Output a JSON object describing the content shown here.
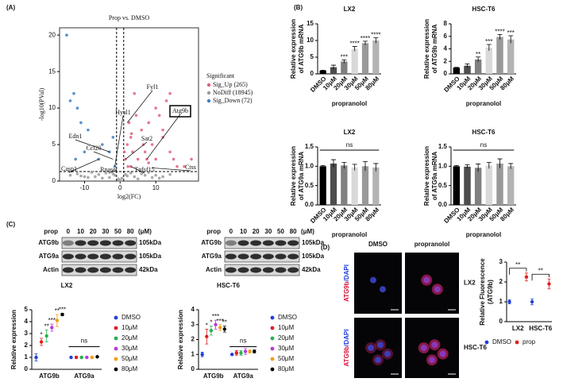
{
  "panel_labels": [
    "(A)",
    "(B)",
    "(C)",
    "(D)"
  ],
  "chart_data": [
    {
      "type": "scatter",
      "title": "Prop vs. DMSO",
      "xlabel": "log2(FC)",
      "ylabel": "-log10(PVal)",
      "xlim": [
        -17,
        22
      ],
      "ylim": [
        0,
        21
      ],
      "xticks": [
        -10,
        0,
        10
      ],
      "yticks": [
        0,
        5,
        10,
        15,
        20
      ],
      "thresholds": {
        "x": [
          -1,
          1
        ],
        "y": 1.3
      },
      "legend_title": "Significant",
      "series": [
        {
          "name": "Sig_Up (265)",
          "color": "#e0607e",
          "x": [
            1.5,
            2,
            2.5,
            3,
            3.5,
            4,
            5,
            6,
            7,
            8,
            9,
            10,
            11,
            12,
            13,
            14,
            15,
            16,
            3,
            4.5,
            6.5,
            8,
            10,
            12,
            14,
            2.2,
            3.2,
            18,
            20,
            1.2,
            7.5
          ],
          "values": [
            3,
            5,
            8,
            6,
            4,
            12,
            3,
            7,
            4,
            2.5,
            5,
            3,
            9,
            6,
            11,
            4,
            3,
            2,
            2,
            9,
            5,
            8,
            10,
            7,
            12,
            2,
            6.5,
            2,
            3,
            4,
            3
          ]
        },
        {
          "name": "NoDiff (18945)",
          "color": "#9a9a9a",
          "x": [
            -14,
            -12,
            -10,
            -8,
            -6,
            -4,
            -3,
            -2,
            -1.5,
            -0.5,
            0.5,
            1.5,
            2,
            3,
            4,
            6,
            8,
            10,
            12,
            14,
            -5,
            5,
            -9,
            9,
            0,
            -11,
            11,
            -7,
            7
          ],
          "values": [
            0.8,
            1,
            0.6,
            1.2,
            0.9,
            1.1,
            0.5,
            1,
            0.8,
            0.3,
            0.4,
            0.9,
            0.7,
            1.1,
            0.6,
            1,
            1.2,
            0.8,
            0.6,
            0.9,
            0.4,
            0.3,
            0.5,
            0.5,
            0.1,
            0.7,
            0.4,
            0.6,
            0.8
          ]
        },
        {
          "name": "Sig_Down (72)",
          "color": "#3d7fc1",
          "x": [
            -15,
            -14,
            -13,
            -12,
            -11,
            -10,
            -9,
            -6,
            -5,
            -3,
            -2,
            -1.5,
            -12.5
          ],
          "values": [
            20,
            11,
            12,
            10,
            8,
            4,
            7,
            3,
            5,
            4,
            6,
            2,
            3
          ]
        }
      ],
      "annotations": [
        {
          "text": "Fyl1",
          "x": 2,
          "y": 8
        },
        {
          "text": "Atg9b",
          "x": 7.5,
          "y": 3,
          "boxed": true
        },
        {
          "text": "Hyal1",
          "x": -1.5,
          "y": 2
        },
        {
          "text": "Sat2",
          "x": 1.5,
          "y": 3
        },
        {
          "text": "Edn1",
          "x": -3,
          "y": 4
        },
        {
          "text": "Ccl20",
          "x": -2,
          "y": 3
        },
        {
          "text": "Casp1",
          "x": -6,
          "y": 3
        },
        {
          "text": "Rnasel",
          "x": -1,
          "y": 1.5
        },
        {
          "text": "Tnfsf15",
          "x": 3,
          "y": 2
        },
        {
          "text": "Ctss",
          "x": 9,
          "y": 1.8
        }
      ]
    },
    {
      "type": "bar",
      "title": "LX2",
      "ylabel": [
        "Relative expression",
        "of ATG9b mRNA"
      ],
      "xlabel": "propranolol",
      "categories": [
        "DMSO",
        "10μM",
        "20μM",
        "30μM",
        "50μM",
        "80μM"
      ],
      "values": [
        1,
        2,
        3.7,
        7.5,
        9.2,
        10
      ],
      "errors": [
        0.1,
        0.6,
        0.5,
        0.7,
        0.6,
        0.8
      ],
      "significance": [
        null,
        null,
        "***",
        "****",
        "****",
        "****"
      ],
      "colors": [
        "#000000",
        "#4d4d4d",
        "#808080",
        "#d9d9d9",
        "#999999",
        "#b3b3b3"
      ],
      "ylim": [
        0,
        15
      ],
      "yticks": [
        0,
        5,
        10,
        15
      ]
    },
    {
      "type": "bar",
      "title": "HSC-T6",
      "ylabel": [
        "Relative expression",
        "of ATG9b mRNA"
      ],
      "xlabel": "propranolol",
      "categories": [
        "DMSO",
        "10μM",
        "20μM",
        "30μM",
        "50μM",
        "80μM"
      ],
      "values": [
        1,
        1.3,
        2.3,
        4.2,
        5.9,
        5.5
      ],
      "errors": [
        0.05,
        0.3,
        0.4,
        0.5,
        0.4,
        0.6
      ],
      "significance": [
        null,
        null,
        "**",
        "***",
        "****",
        "***"
      ],
      "colors": [
        "#000000",
        "#4d4d4d",
        "#808080",
        "#d9d9d9",
        "#999999",
        "#b3b3b3"
      ],
      "ylim": [
        0,
        8
      ],
      "yticks": [
        0,
        2,
        4,
        6,
        8
      ]
    },
    {
      "type": "bar",
      "title": "LX2",
      "ylabel": [
        "Relative expression",
        "of ATG9a mRNA"
      ],
      "xlabel": "propranolol",
      "categories": [
        "DMSO",
        "10μM",
        "20μM",
        "30μM",
        "50μM",
        "80μM"
      ],
      "values": [
        1,
        1.07,
        1.02,
        0.97,
        1,
        0.97
      ],
      "errors": [
        0.02,
        0.1,
        0.08,
        0.08,
        0.12,
        0.1
      ],
      "colors": [
        "#000000",
        "#4d4d4d",
        "#808080",
        "#d9d9d9",
        "#999999",
        "#b3b3b3"
      ],
      "annotation": "ns",
      "ylim": [
        0,
        1.5
      ],
      "yticks": [
        {
          "value": 0,
          "label": "0.0"
        },
        {
          "value": 0.5,
          "label": "0.5"
        },
        {
          "value": 1,
          "label": "1.0"
        },
        {
          "value": 1.5,
          "label": "1.5"
        }
      ]
    },
    {
      "type": "bar",
      "title": "HSC-T6",
      "ylabel": [
        "Relative expression",
        "of ATG9a mRNA"
      ],
      "xlabel": "propranolol",
      "categories": [
        "DMSO",
        "10μM",
        "20μM",
        "30μM",
        "50μM",
        "80μM"
      ],
      "values": [
        1,
        0.99,
        0.96,
        1.02,
        1.07,
        1
      ],
      "errors": [
        0.02,
        0.05,
        0.1,
        0.08,
        0.12,
        0.07
      ],
      "colors": [
        "#000000",
        "#4d4d4d",
        "#808080",
        "#d9d9d9",
        "#999999",
        "#b3b3b3"
      ],
      "annotation": "ns",
      "ylim": [
        0,
        1.5
      ],
      "yticks": [
        {
          "value": 0,
          "label": "0.0"
        },
        {
          "value": 0.5,
          "label": "0.5"
        },
        {
          "value": 1,
          "label": "1.0"
        },
        {
          "value": 1.5,
          "label": "1.5"
        }
      ]
    },
    {
      "type": "dot",
      "title": "LX2",
      "ylabel": [
        "Relative expression"
      ],
      "legend": "right",
      "categories": [
        "ATG9b",
        "ATG9a"
      ],
      "annotation": "ns",
      "series": [
        {
          "name": "DMSO",
          "color": "#1f3fdc",
          "values": [
            1,
            1
          ],
          "errors": [
            0.3,
            0.05
          ],
          "significance": [
            null,
            null
          ]
        },
        {
          "name": "10μM",
          "color": "#e51c1c",
          "values": [
            2.3,
            1
          ],
          "errors": [
            0.3,
            0.08
          ],
          "significance": [
            "*",
            null
          ]
        },
        {
          "name": "20μM",
          "color": "#22b14c",
          "values": [
            2.8,
            1
          ],
          "errors": [
            0.5,
            0.08
          ],
          "significance": [
            "**",
            null
          ]
        },
        {
          "name": "30μM",
          "color": "#b43cd8",
          "values": [
            3.5,
            1
          ],
          "errors": [
            0.3,
            0.06
          ],
          "significance": [
            "***",
            null
          ]
        },
        {
          "name": "50μM",
          "color": "#f39c12",
          "values": [
            4.1,
            1
          ],
          "errors": [
            0.5,
            0.06
          ],
          "significance": [
            "**",
            null
          ]
        },
        {
          "name": "80μM",
          "color": "#000000",
          "values": [
            4.6,
            1.05
          ],
          "errors": [
            0.1,
            0.05
          ],
          "significance": [
            "***",
            null
          ]
        }
      ],
      "ylim": [
        0,
        5
      ],
      "yticks": [
        0,
        1,
        2,
        3,
        4,
        5
      ]
    },
    {
      "type": "dot",
      "title": "HSC-T6",
      "ylabel": [
        "Relative expression"
      ],
      "legend": "right",
      "categories": [
        "ATG9b",
        "ATG9a"
      ],
      "annotation": "ns",
      "series": [
        {
          "name": "DMSO",
          "color": "#1f3fdc",
          "values": [
            1,
            1
          ],
          "errors": [
            0.15,
            0.05
          ],
          "significance": [
            null,
            null
          ]
        },
        {
          "name": "10μM",
          "color": "#e51c1c",
          "values": [
            2.2,
            1.1
          ],
          "errors": [
            0.5,
            0.15
          ],
          "significance": [
            "*",
            null
          ]
        },
        {
          "name": "20μM",
          "color": "#22b14c",
          "values": [
            2.6,
            1.1
          ],
          "errors": [
            0.3,
            0.15
          ],
          "significance": [
            "*",
            null
          ]
        },
        {
          "name": "30μM",
          "color": "#b43cd8",
          "values": [
            3,
            1.2
          ],
          "errors": [
            0.3,
            0.2
          ],
          "significance": [
            "***",
            null
          ]
        },
        {
          "name": "50μM",
          "color": "#f39c12",
          "values": [
            2.8,
            1.2
          ],
          "errors": [
            0.2,
            0.1
          ],
          "significance": [
            "***",
            null
          ]
        },
        {
          "name": "80μM",
          "color": "#000000",
          "values": [
            2.7,
            1.2
          ],
          "errors": [
            0.2,
            0.1
          ],
          "significance": [
            "**",
            null
          ]
        }
      ],
      "ylim": [
        0,
        4
      ],
      "yticks": [
        0,
        1,
        2,
        3,
        4
      ]
    },
    {
      "type": "dot",
      "ylabel": [
        "Relative Fluorescence",
        "(ATG9b)"
      ],
      "legend": "bottom",
      "categories": [
        "LX2",
        "HSC-T6"
      ],
      "brackets": [
        "**",
        "**"
      ],
      "series": [
        {
          "name": "DMSO",
          "color": "#1f3fdc",
          "values": [
            1,
            1
          ],
          "errors": [
            0.1,
            0.15
          ]
        },
        {
          "name": "prop",
          "color": "#e51c1c",
          "values": [
            2.25,
            1.9
          ],
          "errors": [
            0.2,
            0.25
          ]
        }
      ],
      "ylim": [
        0,
        3
      ],
      "yticks": [
        0,
        1,
        2,
        3
      ]
    }
  ],
  "blots": [
    {
      "header": "prop",
      "lanes": [
        "0",
        "10",
        "20",
        "30",
        "50",
        "80"
      ],
      "unit": "(μM)",
      "rows": [
        "ATG9b",
        "ATG9a",
        "Actin"
      ],
      "sizes": [
        "105kDa",
        "105kDa",
        "42kDa"
      ]
    },
    {
      "header": "prop",
      "lanes": [
        "0",
        "10",
        "20",
        "30",
        "50",
        "80"
      ],
      "unit": "(μM)",
      "rows": [
        "ATG9b",
        "ATG9a",
        "Actin"
      ],
      "sizes": [
        "105kDa",
        "105kDa",
        "42kDa"
      ]
    }
  ],
  "images": {
    "columns": [
      "DMSO",
      "propranolol"
    ],
    "rows": [
      "LX2",
      "HSC-T6"
    ],
    "stain": [
      [
        "ATG9b",
        "/DAPI"
      ],
      [
        "ATG9b",
        "/DAPI"
      ]
    ]
  }
}
